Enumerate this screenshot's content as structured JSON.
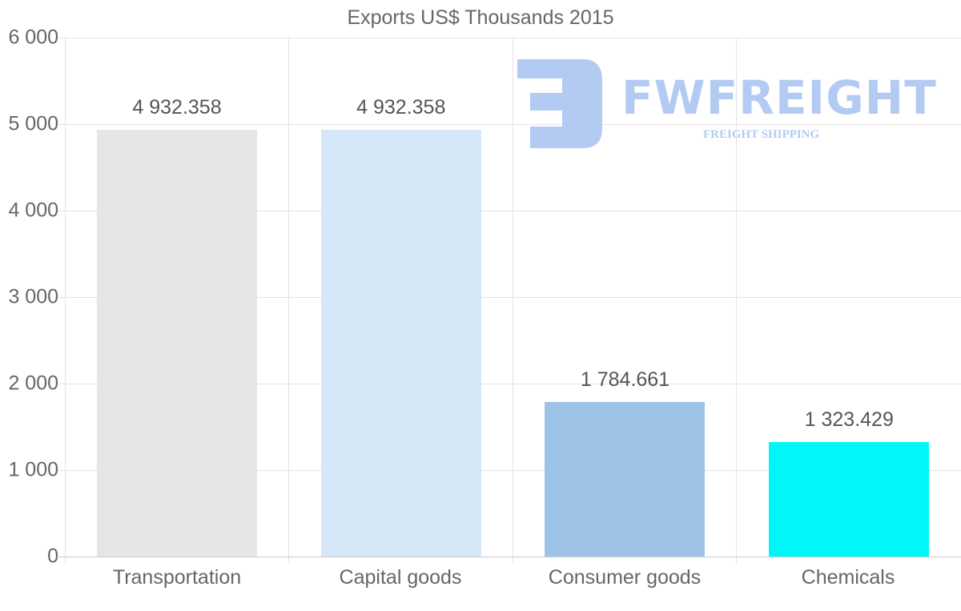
{
  "chart_data": {
    "type": "bar",
    "title": "Exports US$ Thousands 2015",
    "xlabel": "",
    "ylabel": "",
    "categories": [
      "Transportation",
      "Capital goods",
      "Consumer goods",
      "Chemicals"
    ],
    "values": [
      4932.358,
      4932.358,
      1784.661,
      1323.429
    ],
    "value_labels": [
      "4 932.358",
      "4 932.358",
      "1 784.661",
      "1 323.429"
    ],
    "colors": [
      "#e6e6e6",
      "#d6e7f8",
      "#9dc3e6",
      "#00f7f7"
    ],
    "ylim": [
      0,
      6000
    ],
    "yticks": [
      0,
      1000,
      2000,
      3000,
      4000,
      5000,
      6000
    ],
    "ytick_labels": [
      "0",
      "1 000",
      "2 000",
      "3 000",
      "4 000",
      "5 000",
      "6 000"
    ],
    "grid": true,
    "legend": "none"
  },
  "watermark": {
    "brand": "FWFREIGHT",
    "tagline": "FREIGHT SHIPPING",
    "color": "#b3cbf2"
  }
}
